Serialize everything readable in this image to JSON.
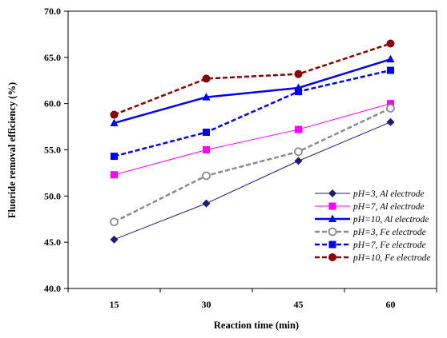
{
  "chart_data": {
    "type": "line",
    "xlabel": "Reaction time (min)",
    "ylabel": "Fluoride removal efficiency (%)",
    "categories": [
      "15",
      "30",
      "45",
      "60"
    ],
    "ylim": [
      40.0,
      70.0
    ],
    "yticks": [
      "40.0",
      "45.0",
      "50.0",
      "55.0",
      "60.0",
      "65.0",
      "70.0"
    ],
    "grid": false,
    "legend_position": "bottom-right",
    "series": [
      {
        "name": "pH=3, Al electrode",
        "values": [
          45.3,
          49.2,
          53.8,
          58.0
        ],
        "color": "#1f1a7a",
        "dashed": false,
        "marker": "diamond",
        "width": 1
      },
      {
        "name": "pH=7, Al electrode",
        "values": [
          52.3,
          55.0,
          57.2,
          60.0
        ],
        "color": "#ff00ff",
        "dashed": false,
        "marker": "square",
        "width": 1
      },
      {
        "name": "pH=10, Al electrode",
        "values": [
          57.9,
          60.7,
          61.7,
          64.8
        ],
        "color": "#0000ff",
        "dashed": false,
        "marker": "triangle",
        "width": 2.5
      },
      {
        "name": "pH=3, Fe electrode",
        "values": [
          47.2,
          52.2,
          54.8,
          59.5
        ],
        "color": "#8c8c8c",
        "dashed": true,
        "marker": "open-circle",
        "width": 2.5
      },
      {
        "name": "pH=7, Fe electrode",
        "values": [
          54.3,
          56.9,
          61.3,
          63.6
        ],
        "color": "#0000ff",
        "dashed": true,
        "marker": "square",
        "width": 2.5
      },
      {
        "name": "pH=10, Fe electrode",
        "values": [
          58.8,
          62.7,
          63.2,
          66.5
        ],
        "color": "#8b0000",
        "dashed": true,
        "marker": "circle",
        "width": 2.5
      }
    ]
  }
}
